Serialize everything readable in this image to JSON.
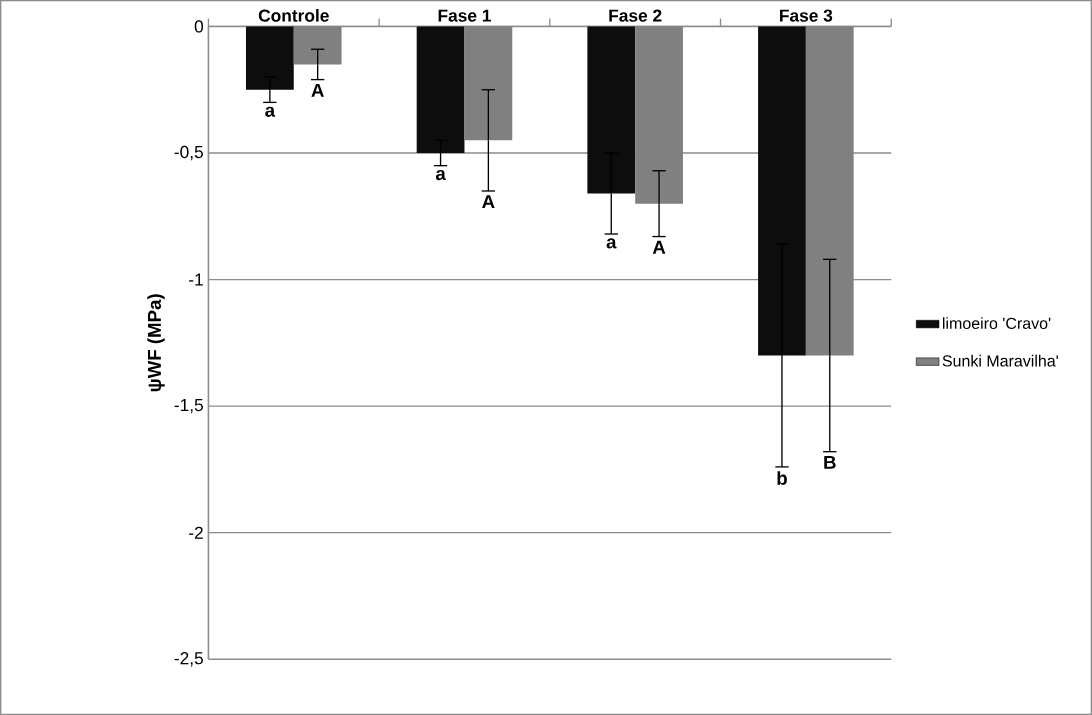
{
  "chart_data": {
    "type": "bar",
    "ylabel": "ψWF (MPa)",
    "categories": [
      "Controle",
      "Fase 1",
      "Fase 2",
      "Fase 3"
    ],
    "series": [
      {
        "name": "limoeiro 'Cravo'",
        "color": "#0d0d0d",
        "values": [
          -0.25,
          -0.5,
          -0.66,
          -1.3
        ],
        "errors": [
          0.05,
          0.05,
          0.16,
          0.44
        ]
      },
      {
        "name": "Sunki Maravilha'",
        "color": "#808080",
        "values": [
          -0.15,
          -0.45,
          -0.7,
          -1.3
        ],
        "errors": [
          0.06,
          0.2,
          0.13,
          0.38
        ]
      }
    ],
    "annotations": [
      "a",
      "A",
      "a",
      "A",
      "a",
      "A",
      "b",
      "B"
    ],
    "ylim": [
      -2.5,
      0
    ],
    "yticks": [
      0,
      {
        "value": -0.5,
        "label": "-0,5"
      },
      -1,
      {
        "value": -1.5,
        "label": "-1,5"
      },
      -2,
      {
        "value": -2.5,
        "label": "-2,5"
      }
    ],
    "grid": "y",
    "legend": "right"
  }
}
